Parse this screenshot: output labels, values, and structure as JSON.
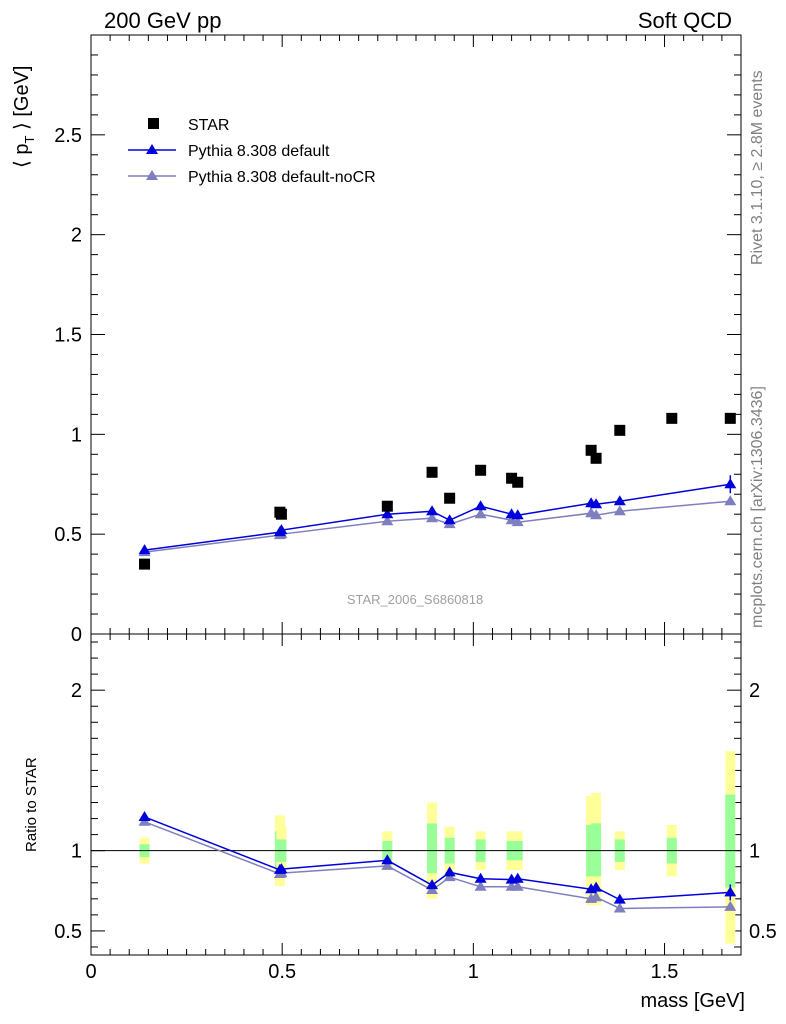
{
  "header": {
    "left": "200 GeV pp",
    "right": "Soft QCD"
  },
  "side_labels": {
    "rivet": "Rivet 3.1.10, ≥ 2.8M events",
    "mcplots": "mcplots.cern.ch [arXiv:1306.3436]"
  },
  "colors": {
    "star": "#000000",
    "pythia_default": "#0000dd",
    "pythia_nocr": "#7f7fbf",
    "band_inner": "#99ff99",
    "band_outer": "#ffff99"
  },
  "chart_data": [
    {
      "type": "line",
      "ylabel": "⟨ p_T ⟩ [GeV]",
      "ylabel_main": "⟨ p",
      "ylabel_sub": "T",
      "ylabel_tail": " ⟩ [GeV]",
      "watermark": "STAR_2006_S6860818",
      "xlim": [
        0,
        1.7
      ],
      "ylim": [
        0,
        3.0
      ],
      "yticks": [
        0,
        0.5,
        1,
        1.5,
        2,
        2.5
      ],
      "ytick_labels": [
        "0",
        "0.5",
        "1",
        "1.5",
        "2",
        "2.5"
      ],
      "legend": [
        {
          "label": "STAR",
          "marker": "square"
        },
        {
          "label": "Pythia 8.308 default",
          "marker": "triangle"
        },
        {
          "label": "Pythia 8.308 default-noCR",
          "marker": "triangle"
        }
      ],
      "series": [
        {
          "name": "STAR",
          "style": "points",
          "x": [
            0.14,
            0.494,
            0.498,
            0.775,
            0.892,
            0.938,
            1.019,
            1.1,
            1.116,
            1.308,
            1.321,
            1.383,
            1.519,
            1.672
          ],
          "y": [
            0.35,
            0.61,
            0.6,
            0.64,
            0.81,
            0.68,
            0.82,
            0.78,
            0.76,
            0.92,
            0.88,
            1.02,
            1.08,
            1.08
          ]
        },
        {
          "name": "Pythia 8.308 default",
          "style": "line",
          "x": [
            0.14,
            0.494,
            0.498,
            0.775,
            0.892,
            0.938,
            1.019,
            1.1,
            1.116,
            1.308,
            1.321,
            1.383,
            1.672
          ],
          "y": [
            0.42,
            0.51,
            0.52,
            0.6,
            0.615,
            0.57,
            0.64,
            0.6,
            0.595,
            0.655,
            0.65,
            0.665,
            0.75
          ]
        },
        {
          "name": "Pythia 8.308 default-noCR",
          "style": "line",
          "x": [
            0.14,
            0.494,
            0.498,
            0.775,
            0.892,
            0.938,
            1.019,
            1.1,
            1.116,
            1.308,
            1.321,
            1.383,
            1.672
          ],
          "y": [
            0.41,
            0.495,
            0.5,
            0.565,
            0.58,
            0.55,
            0.6,
            0.57,
            0.56,
            0.605,
            0.595,
            0.615,
            0.665
          ]
        }
      ]
    },
    {
      "type": "line",
      "ylabel": "Ratio to STAR",
      "xlabel": "mass [GeV]",
      "xlim": [
        0,
        1.7
      ],
      "ylim": [
        0.35,
        2.35
      ],
      "yticks": [
        0.5,
        1,
        2
      ],
      "ytick_labels": [
        "0.5",
        "1",
        "2"
      ],
      "xticks": [
        0,
        0.5,
        1,
        1.5
      ],
      "xtick_labels": [
        "0",
        "0.5",
        "1",
        "1.5"
      ],
      "reference_line": 1,
      "bands": {
        "x": [
          0.14,
          0.494,
          0.498,
          0.775,
          0.892,
          0.938,
          1.019,
          1.1,
          1.116,
          1.308,
          1.321,
          1.383,
          1.519,
          1.672
        ],
        "inner": [
          [
            0.96,
            1.04
          ],
          [
            0.88,
            1.12
          ],
          [
            0.93,
            1.07
          ],
          [
            0.94,
            1.06
          ],
          [
            0.86,
            1.17
          ],
          [
            0.92,
            1.08
          ],
          [
            0.93,
            1.07
          ],
          [
            0.94,
            1.06
          ],
          [
            0.94,
            1.06
          ],
          [
            0.84,
            1.16
          ],
          [
            0.84,
            1.17
          ],
          [
            0.93,
            1.07
          ],
          [
            0.92,
            1.08
          ],
          [
            0.77,
            1.35
          ]
        ],
        "outer": [
          [
            0.92,
            1.08
          ],
          [
            0.78,
            1.22
          ],
          [
            0.85,
            1.15
          ],
          [
            0.88,
            1.12
          ],
          [
            0.7,
            1.3
          ],
          [
            0.85,
            1.15
          ],
          [
            0.88,
            1.12
          ],
          [
            0.88,
            1.12
          ],
          [
            0.88,
            1.12
          ],
          [
            0.66,
            1.34
          ],
          [
            0.66,
            1.36
          ],
          [
            0.88,
            1.12
          ],
          [
            0.84,
            1.16
          ],
          [
            0.42,
            1.62
          ]
        ]
      },
      "series": [
        {
          "name": "Pythia 8.308 default",
          "x": [
            0.14,
            0.494,
            0.498,
            0.775,
            0.892,
            0.938,
            1.019,
            1.1,
            1.116,
            1.308,
            1.321,
            1.383,
            1.672
          ],
          "y": [
            1.21,
            0.88,
            0.885,
            0.94,
            0.785,
            0.865,
            0.825,
            0.82,
            0.825,
            0.76,
            0.77,
            0.695,
            0.74
          ]
        },
        {
          "name": "Pythia 8.308 default-noCR",
          "x": [
            0.14,
            0.494,
            0.498,
            0.775,
            0.892,
            0.938,
            1.019,
            1.1,
            1.116,
            1.308,
            1.321,
            1.383,
            1.672
          ],
          "y": [
            1.18,
            0.855,
            0.86,
            0.905,
            0.755,
            0.835,
            0.775,
            0.775,
            0.775,
            0.7,
            0.71,
            0.64,
            0.65
          ]
        }
      ]
    }
  ]
}
